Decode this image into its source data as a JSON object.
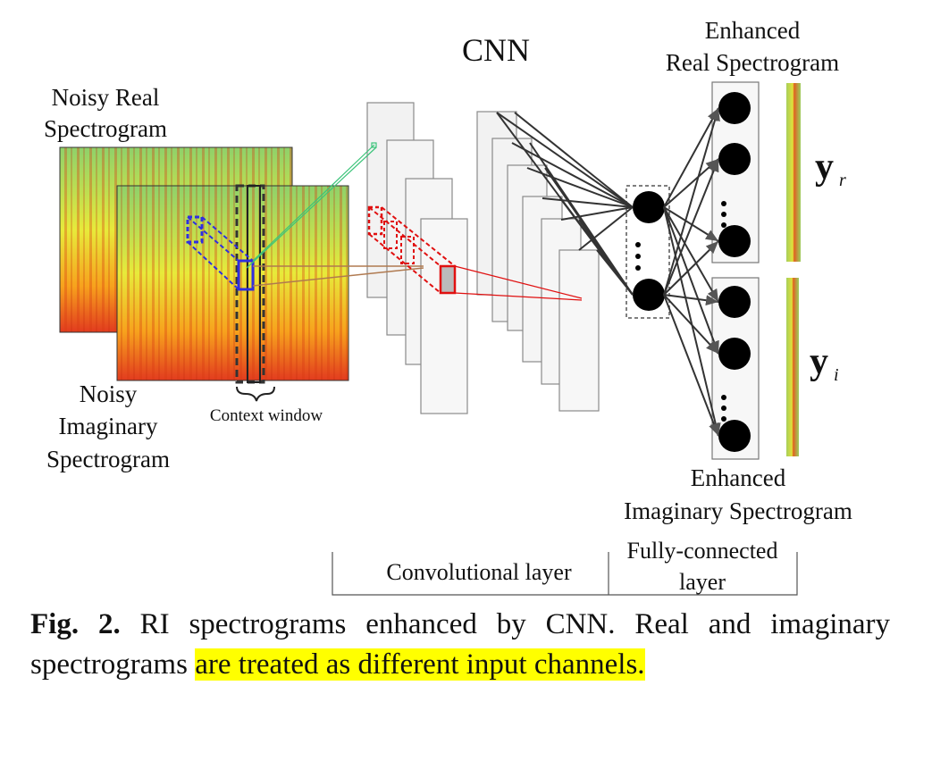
{
  "diagram": {
    "title": "CNN",
    "noisy_real": [
      "Noisy Real",
      "Spectrogram"
    ],
    "noisy_imag": [
      "Noisy",
      "Imaginary",
      "Spectrogram"
    ],
    "context_window": "Context window",
    "enhanced_real": [
      "Enhanced",
      "Real Spectrogram"
    ],
    "enhanced_imag": [
      "Enhanced",
      "Imaginary Spectrogram"
    ],
    "y_real": {
      "base": "y",
      "sub": "r"
    },
    "y_imag": {
      "base": "y",
      "sub": "i"
    },
    "conv_layer": "Convolutional layer",
    "fc_layer": [
      "Fully-connected",
      "layer"
    ],
    "colors": {
      "spec_red": "#e23b1f",
      "spec_orange": "#f7a21d",
      "spec_yellow": "#e8ea3a",
      "spec_green": "#8fd16a",
      "blue_kernel": "#2f2fe0",
      "red_kernel": "#e01010",
      "green_line": "#3cc47a",
      "brown_line": "#b07a50",
      "highlight": "#ffff00"
    }
  },
  "caption": {
    "label": "Fig. 2.",
    "text_plain": "RI spectrograms enhanced by CNN.  Real and imaginary spectrograms",
    "text_highlight": "are treated as different input channels."
  }
}
